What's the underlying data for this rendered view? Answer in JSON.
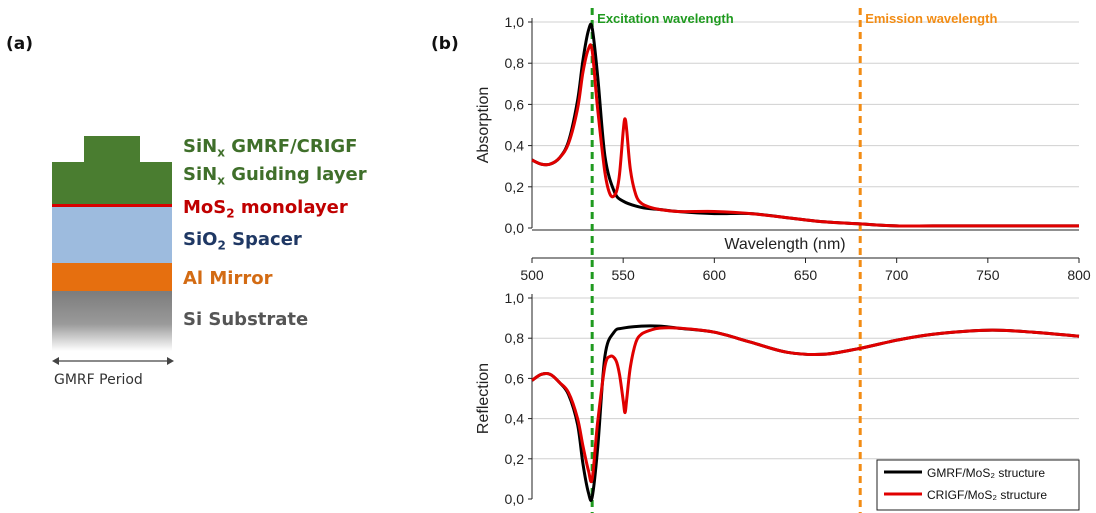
{
  "panel_a": {
    "label": "(a)",
    "layers": [
      {
        "text": "SiN",
        "sub": "x",
        "rest": " GMRF/CRIGF",
        "color": "#3f6f2a"
      },
      {
        "text": "SiN",
        "sub": "x",
        "rest": " Guiding layer",
        "color": "#3f6f2a"
      },
      {
        "text": "MoS",
        "sub": "2",
        "rest": " monolayer",
        "color": "#c00000"
      },
      {
        "text": "SiO",
        "sub": "2",
        "rest": " Spacer",
        "color": "#1f3864"
      },
      {
        "text": "Al Mirror",
        "sub": "",
        "rest": "",
        "color": "#d36b13"
      },
      {
        "text": "Si Substrate",
        "sub": "",
        "rest": "",
        "color": "#555555"
      }
    ],
    "period_label": "GMRF Period",
    "colors": {
      "green": "#4a7d30",
      "red": "#d80000",
      "blue": "#9dbbde",
      "orange": "#e66f0f",
      "gray": "#7c7c7c"
    }
  },
  "panel_b": {
    "label": "(b)",
    "excitation_label": "Excitation wavelength",
    "emission_label": "Emission wavelength",
    "excitation_color": "#1f9a1f",
    "emission_color": "#f28c14"
  },
  "chart_data": [
    {
      "type": "line",
      "ylabel": "Absorption",
      "xlabel": "Wavelength (nm)",
      "xlim": [
        500,
        800
      ],
      "ylim": [
        0,
        1.0
      ],
      "yticks": [
        "0,0",
        "0,2",
        "0,4",
        "0,6",
        "0,8",
        "1,0"
      ],
      "xticks": [
        "500",
        "550",
        "600",
        "650",
        "700",
        "750",
        "800"
      ],
      "vlines": [
        533,
        680
      ],
      "series": [
        {
          "name": "GMRF/MoS₂ structure",
          "color": "#000000",
          "x": [
            500,
            505,
            510,
            515,
            520,
            525,
            528,
            531,
            533,
            536,
            540,
            545,
            550,
            560,
            570,
            580,
            600,
            620,
            640,
            660,
            680,
            700,
            720,
            750,
            800
          ],
          "y": [
            0.33,
            0.31,
            0.31,
            0.34,
            0.42,
            0.62,
            0.82,
            0.96,
            0.97,
            0.74,
            0.35,
            0.18,
            0.13,
            0.1,
            0.09,
            0.08,
            0.07,
            0.07,
            0.05,
            0.03,
            0.02,
            0.01,
            0.01,
            0.01,
            0.01
          ]
        },
        {
          "name": "CRIGF/MoS₂ structure",
          "color": "#e00000",
          "x": [
            500,
            505,
            510,
            515,
            520,
            525,
            528,
            531,
            533,
            536,
            540,
            543,
            546,
            548,
            550,
            551,
            552,
            554,
            557,
            560,
            565,
            570,
            580,
            600,
            620,
            640,
            660,
            680,
            700,
            720,
            750,
            800
          ],
          "y": [
            0.33,
            0.31,
            0.31,
            0.34,
            0.41,
            0.58,
            0.76,
            0.87,
            0.86,
            0.58,
            0.27,
            0.16,
            0.17,
            0.26,
            0.47,
            0.53,
            0.47,
            0.28,
            0.16,
            0.12,
            0.1,
            0.09,
            0.08,
            0.08,
            0.07,
            0.05,
            0.03,
            0.02,
            0.01,
            0.01,
            0.01,
            0.01
          ]
        }
      ]
    },
    {
      "type": "line",
      "ylabel": "Reflection",
      "xlim": [
        500,
        800
      ],
      "ylim": [
        0,
        1.0
      ],
      "yticks": [
        "0,0",
        "0,2",
        "0,4",
        "0,6",
        "0,8",
        "1,0"
      ],
      "vlines": [
        533,
        680
      ],
      "legend_position": "bottom-right",
      "series": [
        {
          "name": "GMRF/MoS₂ structure",
          "color": "#000000",
          "x": [
            500,
            505,
            510,
            515,
            520,
            525,
            528,
            531,
            533,
            536,
            540,
            545,
            550,
            560,
            570,
            580,
            600,
            620,
            640,
            660,
            680,
            700,
            720,
            750,
            775,
            800
          ],
          "y": [
            0.59,
            0.62,
            0.62,
            0.58,
            0.52,
            0.37,
            0.17,
            0.03,
            0.01,
            0.25,
            0.71,
            0.83,
            0.85,
            0.86,
            0.86,
            0.85,
            0.83,
            0.78,
            0.73,
            0.72,
            0.75,
            0.79,
            0.82,
            0.84,
            0.83,
            0.81
          ]
        },
        {
          "name": "CRIGF/MoS₂ structure",
          "color": "#e00000",
          "x": [
            500,
            505,
            510,
            515,
            520,
            525,
            528,
            531,
            533,
            536,
            540,
            543,
            546,
            548,
            550,
            551,
            552,
            554,
            557,
            560,
            565,
            570,
            580,
            600,
            620,
            640,
            660,
            680,
            700,
            720,
            750,
            775,
            800
          ],
          "y": [
            0.59,
            0.62,
            0.62,
            0.58,
            0.53,
            0.4,
            0.26,
            0.14,
            0.1,
            0.38,
            0.66,
            0.71,
            0.69,
            0.62,
            0.49,
            0.43,
            0.5,
            0.66,
            0.78,
            0.82,
            0.84,
            0.85,
            0.85,
            0.83,
            0.78,
            0.73,
            0.72,
            0.75,
            0.79,
            0.82,
            0.84,
            0.83,
            0.81
          ]
        }
      ]
    }
  ]
}
